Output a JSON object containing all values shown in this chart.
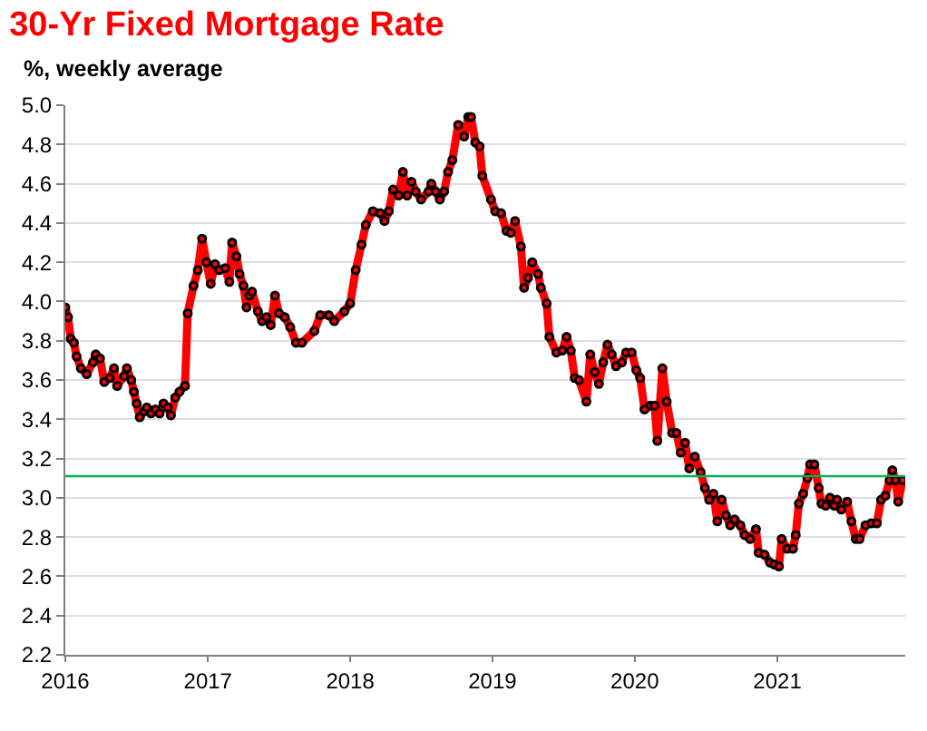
{
  "chart_data": {
    "type": "line",
    "title": "30-Yr Fixed Mortgage Rate",
    "subtitle": "%, weekly average",
    "xlim": [
      "2016-01-01",
      "2021-11-25"
    ],
    "xticks": [
      "2016",
      "2017",
      "2018",
      "2019",
      "2020",
      "2021"
    ],
    "ylim": [
      2.2,
      5.0
    ],
    "yticks": [
      2.2,
      2.4,
      2.6,
      2.8,
      {
        "value": 3.0,
        "label": "3.0"
      },
      3.2,
      3.4,
      3.6,
      3.8,
      {
        "value": 4.0,
        "label": "4.0"
      },
      4.2,
      4.4,
      4.6,
      4.8,
      {
        "value": 5.0,
        "label": "5.0"
      }
    ],
    "grid": "y",
    "marker": "circle",
    "line_style": "solid",
    "ref_lines": [
      {
        "axis": "y",
        "value": 3.11,
        "color": "#00b050"
      }
    ],
    "series": [
      {
        "color": "#ff0000",
        "x": [
          "2016-01-01",
          "2016-01-08",
          "2016-01-15",
          "2016-01-23",
          "2016-01-30",
          "2016-02-10",
          "2016-02-25",
          "2016-03-12",
          "2016-03-19",
          "2016-03-30",
          "2016-04-10",
          "2016-04-24",
          "2016-05-05",
          "2016-05-13",
          "2016-05-31",
          "2016-06-07",
          "2016-06-18",
          "2016-06-25",
          "2016-07-02",
          "2016-07-10",
          "2016-07-21",
          "2016-07-28",
          "2016-08-08",
          "2016-08-19",
          "2016-08-30",
          "2016-09-09",
          "2016-09-20",
          "2016-09-28",
          "2016-10-09",
          "2016-10-20",
          "2016-11-03",
          "2016-11-10",
          "2016-11-25",
          "2016-12-06",
          "2016-12-17",
          "2016-12-28",
          "2017-01-08",
          "2017-01-19",
          "2017-01-30",
          "2017-02-14",
          "2017-02-25",
          "2017-03-04",
          "2017-03-15",
          "2017-03-23",
          "2017-04-02",
          "2017-04-10",
          "2017-04-17",
          "2017-04-24",
          "2017-05-09",
          "2017-05-20",
          "2017-05-31",
          "2017-06-11",
          "2017-06-22",
          "2017-07-02",
          "2017-07-17",
          "2017-07-31",
          "2017-08-15",
          "2017-08-30",
          "2017-10-01",
          "2017-10-16",
          "2017-11-07",
          "2017-11-21",
          "2017-12-17",
          "2018-01-01",
          "2018-01-15",
          "2018-01-30",
          "2018-02-10",
          "2018-02-28",
          "2018-03-19",
          "2018-03-30",
          "2018-04-10",
          "2018-04-21",
          "2018-05-05",
          "2018-05-16",
          "2018-05-27",
          "2018-06-07",
          "2018-06-18",
          "2018-07-02",
          "2018-07-21",
          "2018-07-28",
          "2018-08-08",
          "2018-08-19",
          "2018-08-30",
          "2018-09-09",
          "2018-09-20",
          "2018-10-05",
          "2018-10-20",
          "2018-10-31",
          "2018-11-07",
          "2018-11-18",
          "2018-11-29",
          "2018-12-06",
          "2018-12-28",
          "2019-01-08",
          "2019-01-23",
          "2019-02-06",
          "2019-02-17",
          "2019-02-28",
          "2019-03-15",
          "2019-03-23",
          "2019-04-02",
          "2019-04-13",
          "2019-04-28",
          "2019-05-05",
          "2019-05-20",
          "2019-05-27",
          "2019-06-14",
          "2019-06-29",
          "2019-07-10",
          "2019-07-21",
          "2019-07-31",
          "2019-08-11",
          "2019-08-30",
          "2019-09-09",
          "2019-09-20",
          "2019-10-01",
          "2019-10-12",
          "2019-10-23",
          "2019-11-03",
          "2019-11-14",
          "2019-11-29",
          "2019-12-10",
          "2019-12-24",
          "2020-01-05",
          "2020-01-15",
          "2020-01-26",
          "2020-02-10",
          "2020-02-21",
          "2020-02-28",
          "2020-03-12",
          "2020-03-23",
          "2020-04-06",
          "2020-04-17",
          "2020-04-28",
          "2020-05-09",
          "2020-05-20",
          "2020-06-03",
          "2020-06-18",
          "2020-06-29",
          "2020-07-10",
          "2020-07-21",
          "2020-07-31",
          "2020-08-11",
          "2020-08-22",
          "2020-09-02",
          "2020-09-13",
          "2020-09-28",
          "2020-10-09",
          "2020-10-23",
          "2020-11-07",
          "2020-11-14",
          "2020-11-29",
          "2020-12-13",
          "2020-12-24",
          "2021-01-05",
          "2021-01-12",
          "2021-01-26",
          "2021-02-10",
          "2021-02-17",
          "2021-02-25",
          "2021-03-08",
          "2021-03-19",
          "2021-03-26",
          "2021-04-06",
          "2021-04-17",
          "2021-04-24",
          "2021-05-05",
          "2021-05-16",
          "2021-05-27",
          "2021-06-03",
          "2021-06-14",
          "2021-06-29",
          "2021-07-10",
          "2021-07-21",
          "2021-07-31",
          "2021-08-15",
          "2021-08-30",
          "2021-09-13",
          "2021-09-24",
          "2021-10-05",
          "2021-10-16",
          "2021-10-23",
          "2021-10-31",
          "2021-11-07",
          "2021-11-18"
        ],
        "values": [
          3.97,
          3.92,
          3.81,
          3.79,
          3.72,
          3.66,
          3.63,
          3.69,
          3.73,
          3.71,
          3.59,
          3.61,
          3.66,
          3.57,
          3.62,
          3.66,
          3.6,
          3.54,
          3.48,
          3.41,
          3.44,
          3.46,
          3.43,
          3.45,
          3.43,
          3.48,
          3.46,
          3.42,
          3.51,
          3.54,
          3.57,
          3.94,
          4.08,
          4.16,
          4.32,
          4.2,
          4.09,
          4.19,
          4.16,
          4.17,
          4.1,
          4.3,
          4.23,
          4.14,
          4.08,
          3.97,
          4.03,
          4.05,
          3.95,
          3.9,
          3.92,
          3.88,
          4.03,
          3.94,
          3.92,
          3.87,
          3.79,
          3.79,
          3.85,
          3.93,
          3.93,
          3.9,
          3.95,
          3.99,
          4.16,
          4.29,
          4.39,
          4.46,
          4.45,
          4.41,
          4.46,
          4.57,
          4.54,
          4.66,
          4.54,
          4.61,
          4.56,
          4.52,
          4.56,
          4.6,
          4.56,
          4.52,
          4.56,
          4.66,
          4.72,
          4.9,
          4.84,
          4.94,
          4.94,
          4.81,
          4.79,
          4.64,
          4.52,
          4.46,
          4.45,
          4.36,
          4.35,
          4.41,
          4.28,
          4.07,
          4.12,
          4.2,
          4.14,
          4.07,
          3.99,
          3.82,
          3.74,
          3.75,
          3.82,
          3.75,
          3.61,
          3.6,
          3.49,
          3.73,
          3.64,
          3.58,
          3.69,
          3.78,
          3.73,
          3.67,
          3.69,
          3.74,
          3.74,
          3.65,
          3.61,
          3.45,
          3.47,
          3.47,
          3.29,
          3.66,
          3.49,
          3.33,
          3.33,
          3.23,
          3.28,
          3.15,
          3.21,
          3.13,
          3.05,
          2.99,
          3.02,
          2.88,
          2.99,
          2.91,
          2.86,
          2.89,
          2.86,
          2.81,
          2.79,
          2.84,
          2.72,
          2.71,
          2.67,
          2.66,
          2.65,
          2.79,
          2.74,
          2.74,
          2.81,
          2.97,
          3.02,
          3.1,
          3.17,
          3.17,
          3.05,
          2.97,
          2.96,
          3.0,
          2.96,
          2.99,
          2.94,
          2.98,
          2.88,
          2.79,
          2.79,
          2.86,
          2.87,
          2.87,
          2.99,
          3.01,
          3.09,
          3.14,
          3.09,
          2.98,
          3.09
        ]
      }
    ]
  }
}
